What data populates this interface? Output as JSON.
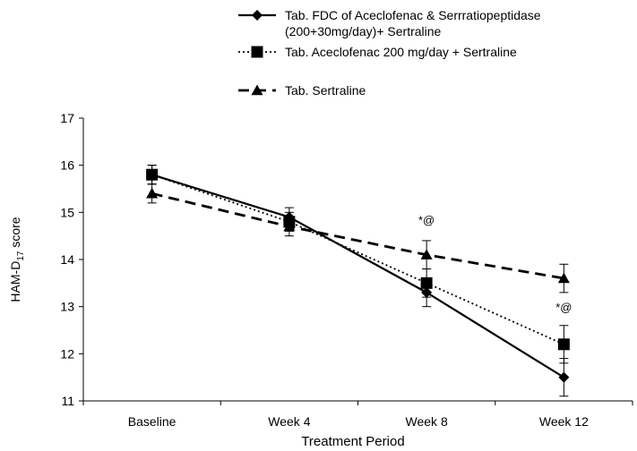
{
  "chart_data": {
    "type": "line",
    "title": "",
    "xlabel": "Treatment Period",
    "ylabel": "HAM-D",
    "ylabel_sub": "17",
    "ylabel_suffix": " score",
    "categories": [
      "Baseline",
      "Week 4",
      "Week 8",
      "Week 12"
    ],
    "ylim": [
      11,
      17
    ],
    "yticks": [
      "11",
      "12",
      "13",
      "14",
      "15",
      "16",
      "17"
    ],
    "grid": false,
    "legend_position": "top",
    "series": [
      {
        "name_lines": [
          "Tab.  FDC of Aceclofenac & Serrratiopeptidase",
          "(200+30mg/day)+ Sertraline"
        ],
        "marker": "diamond",
        "line_style": "solid",
        "values": [
          15.8,
          14.9,
          13.3,
          11.5
        ],
        "error": [
          0.2,
          0.2,
          0.3,
          0.4
        ]
      },
      {
        "name_lines": [
          "Tab.  Aceclofenac 200 mg/day +  Sertraline"
        ],
        "marker": "square",
        "line_style": "dotted",
        "values": [
          15.8,
          14.8,
          13.5,
          12.2
        ],
        "error": [
          0.2,
          0.2,
          0.3,
          0.4
        ]
      },
      {
        "name_lines": [
          "Tab. Sertraline"
        ],
        "marker": "triangle",
        "line_style": "dashed",
        "values": [
          15.4,
          14.7,
          14.1,
          13.6
        ],
        "error": [
          0.2,
          0.2,
          0.3,
          0.3
        ]
      }
    ],
    "annotations": [
      {
        "text": "*@",
        "category": "Week 8",
        "y": 14.75
      },
      {
        "text": "*@",
        "category": "Week 12",
        "y": 12.9
      }
    ]
  }
}
